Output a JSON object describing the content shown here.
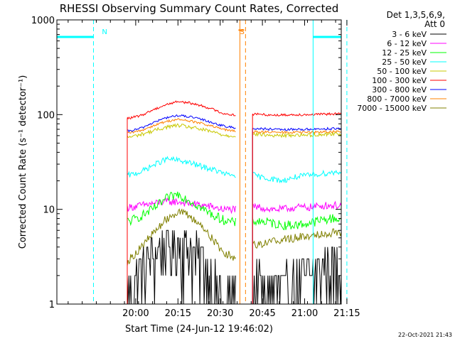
{
  "chart_data": {
    "type": "line",
    "title": "RHESSI Observing Summary Count Rates, Corrected",
    "xlabel": "Start Time (24-Jun-12 19:46:02)",
    "ylabel": "Corrected Count Rate (s⁻¹ detector⁻¹)",
    "yscale": "log",
    "ylim": [
      1,
      1000
    ],
    "xlim": [
      -14,
      87
    ],
    "x_unit": "minutes since 19:46:02",
    "x_ticks": [
      {
        "x": 14,
        "label": "20:00"
      },
      {
        "x": 29,
        "label": "20:15"
      },
      {
        "x": 44,
        "label": "20:30"
      },
      {
        "x": 59,
        "label": "20:45"
      },
      {
        "x": 74,
        "label": "21:00"
      },
      {
        "x": 89,
        "label": "21:15"
      }
    ],
    "y_ticks": [
      {
        "y": 1,
        "label": "1"
      },
      {
        "y": 10,
        "label": "10"
      },
      {
        "y": 100,
        "label": "100"
      },
      {
        "y": 1000,
        "label": "1000"
      }
    ],
    "legend_header": [
      "Det 1,3,5,6,9,",
      "Att 0"
    ],
    "series": [
      {
        "name": "3 - 6 keV",
        "color": "#000000",
        "x": [
          11,
          12,
          16,
          20,
          25,
          29,
          33,
          38,
          42,
          45,
          47,
          49,
          56,
          58,
          62,
          66,
          71,
          76,
          81,
          84,
          87
        ],
        "y": [
          1.3,
          1.6,
          2.2,
          3.3,
          4.4,
          4.6,
          4.0,
          2.8,
          1.6,
          1.2,
          1.1,
          1.1,
          1.6,
          1.6,
          1.5,
          1.5,
          1.6,
          2.0,
          2.5,
          2.6,
          2.6
        ]
      },
      {
        "name": "6 - 12 keV",
        "color": "#ff00ff",
        "x": [
          11,
          12,
          16,
          20,
          25,
          29,
          33,
          38,
          42,
          45,
          47,
          49,
          56,
          58,
          62,
          66,
          71,
          76,
          81,
          84,
          87
        ],
        "y": [
          10.5,
          10.5,
          11,
          11.5,
          12,
          12,
          11.5,
          11,
          10.5,
          10,
          10,
          10,
          10.5,
          10.5,
          10,
          10,
          10.5,
          10.5,
          11,
          11,
          11
        ]
      },
      {
        "name": "12 - 25 keV",
        "color": "#00ff00",
        "x": [
          11,
          12,
          16,
          20,
          25,
          29,
          33,
          38,
          42,
          45,
          47,
          49,
          56,
          58,
          62,
          66,
          71,
          76,
          81,
          84,
          87
        ],
        "y": [
          7.5,
          7.5,
          8.5,
          10,
          13,
          14.5,
          12.5,
          10,
          8.5,
          7.8,
          7.5,
          7.2,
          7.5,
          7.5,
          7.2,
          6.8,
          6.8,
          7.2,
          7.8,
          8.0,
          8.0
        ]
      },
      {
        "name": "25 - 50 keV",
        "color": "#00ffff",
        "x": [
          11,
          12,
          16,
          20,
          25,
          29,
          33,
          38,
          42,
          45,
          47,
          49,
          56,
          58,
          62,
          66,
          71,
          76,
          81,
          84,
          87
        ],
        "y": [
          23,
          23,
          25,
          29,
          34,
          33,
          31,
          28,
          26,
          24,
          23,
          23,
          23,
          22,
          21,
          20,
          22,
          23,
          24,
          24.5,
          25
        ]
      },
      {
        "name": "50 - 100 keV",
        "color": "#c8c800",
        "x": [
          11,
          12,
          16,
          20,
          25,
          29,
          33,
          38,
          42,
          45,
          47,
          49,
          56,
          58,
          62,
          66,
          71,
          76,
          81,
          84,
          87
        ],
        "y": [
          58,
          58,
          62,
          67,
          74,
          77,
          74,
          69,
          65,
          61,
          60,
          60,
          62,
          62,
          60,
          60,
          61,
          61,
          62,
          63,
          63
        ]
      },
      {
        "name": "100 - 300 keV",
        "color": "#ff0000",
        "x": [
          11,
          12,
          16,
          20,
          25,
          29,
          33,
          38,
          42,
          45,
          47,
          49,
          56,
          58,
          62,
          66,
          71,
          76,
          81,
          84,
          87
        ],
        "y": [
          92,
          92,
          98,
          112,
          128,
          138,
          133,
          123,
          112,
          103,
          101,
          99,
          101,
          101,
          99,
          99,
          100,
          100,
          101,
          102,
          102
        ]
      },
      {
        "name": "300 - 800 keV",
        "color": "#0000ff",
        "x": [
          11,
          12,
          16,
          20,
          25,
          29,
          33,
          38,
          42,
          45,
          47,
          49,
          56,
          58,
          62,
          66,
          71,
          76,
          81,
          84,
          87
        ],
        "y": [
          67,
          67,
          72,
          82,
          93,
          98,
          95,
          88,
          81,
          76,
          74,
          73,
          71,
          71,
          70,
          69,
          70,
          70,
          71,
          71,
          71
        ]
      },
      {
        "name": "800 - 7000 keV",
        "color": "#ff8000",
        "x": [
          11,
          12,
          16,
          20,
          25,
          29,
          33,
          38,
          42,
          45,
          47,
          49,
          56,
          58,
          62,
          66,
          71,
          76,
          81,
          84,
          87
        ],
        "y": [
          64,
          64,
          68,
          76,
          85,
          89,
          86,
          80,
          74,
          70,
          68,
          67,
          66,
          66,
          65,
          65,
          65,
          65,
          66,
          66,
          66
        ]
      },
      {
        "name": "7000 - 15000 keV",
        "color": "#808000",
        "x": [
          11,
          12,
          16,
          20,
          25,
          29,
          33,
          38,
          42,
          45,
          47,
          49,
          56,
          58,
          62,
          66,
          71,
          76,
          81,
          84,
          87
        ],
        "y": [
          2.8,
          3.0,
          4.0,
          5.5,
          8.0,
          9.5,
          8.5,
          6.5,
          4.5,
          3.6,
          3.3,
          3.1,
          4.3,
          4.3,
          4.6,
          4.8,
          5.0,
          5.3,
          5.6,
          5.7,
          5.8
        ]
      }
    ],
    "flag_segments": [
      {
        "color": "#00ffff",
        "y": 660,
        "x": [
          -14,
          -1
        ]
      },
      {
        "color": "#00ffff",
        "y": 660,
        "x": [
          77,
          87
        ]
      }
    ],
    "vlines": [
      {
        "x": -14,
        "style": "solid",
        "color": "#00ffff"
      },
      {
        "x": -1,
        "style": "dashed",
        "color": "#00ffff"
      },
      {
        "x": 77,
        "style": "solid",
        "color": "#00ffff"
      },
      {
        "x": 89,
        "style": "dashed",
        "color": "#00ffff"
      },
      {
        "x": 51,
        "style": "solid",
        "color": "#ff8000"
      },
      {
        "x": 53,
        "style": "dashed",
        "color": "#ff8000"
      }
    ],
    "annotations": [
      {
        "text": "N",
        "x": 1,
        "color": "#00ffff"
      },
      {
        "text": "S",
        "x": 50,
        "color": "#ff8000"
      }
    ],
    "data_gap": [
      49.5,
      55.5
    ]
  },
  "footer": {
    "timestamp": "22-Oct-2021 21:43"
  }
}
